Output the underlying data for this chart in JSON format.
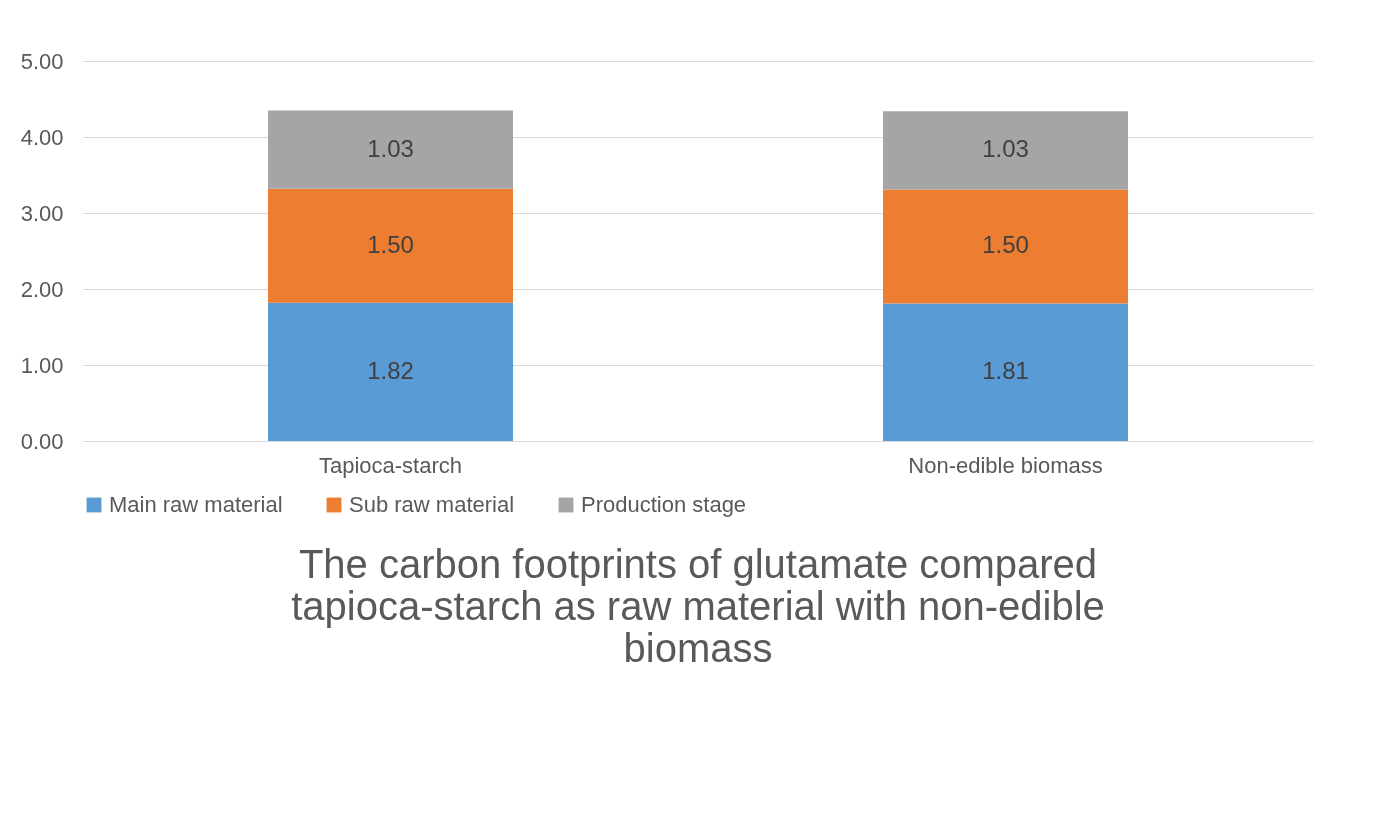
{
  "chart_data": {
    "type": "bar",
    "stacked": true,
    "title": "The carbon footprints of glutamate compared\ntapioca-starch as raw material with non-edible\nbiomass",
    "categories": [
      "Tapioca-starch",
      "Non-edible biomass"
    ],
    "series": [
      {
        "name": "Main raw material",
        "color": "#5b9bd5",
        "values": [
          1.82,
          1.81
        ],
        "value_labels": [
          "1.82",
          "1.81"
        ]
      },
      {
        "name": "Sub raw material",
        "color": "#ed7d31",
        "values": [
          1.5,
          1.5
        ],
        "value_labels": [
          "1.50",
          "1.50"
        ]
      },
      {
        "name": "Production stage",
        "color": "#a5a5a5",
        "values": [
          1.03,
          1.03
        ],
        "value_labels": [
          "1.03",
          "1.03"
        ]
      }
    ],
    "ylim": [
      0,
      5
    ],
    "yticks": [
      {
        "value": 0,
        "label": "0.00"
      },
      {
        "value": 1,
        "label": "1.00"
      },
      {
        "value": 2,
        "label": "2.00"
      },
      {
        "value": 3,
        "label": "3.00"
      },
      {
        "value": 4,
        "label": "4.00"
      },
      {
        "value": 5,
        "label": "5.00"
      }
    ],
    "grid": "y",
    "legend": "bottom"
  }
}
